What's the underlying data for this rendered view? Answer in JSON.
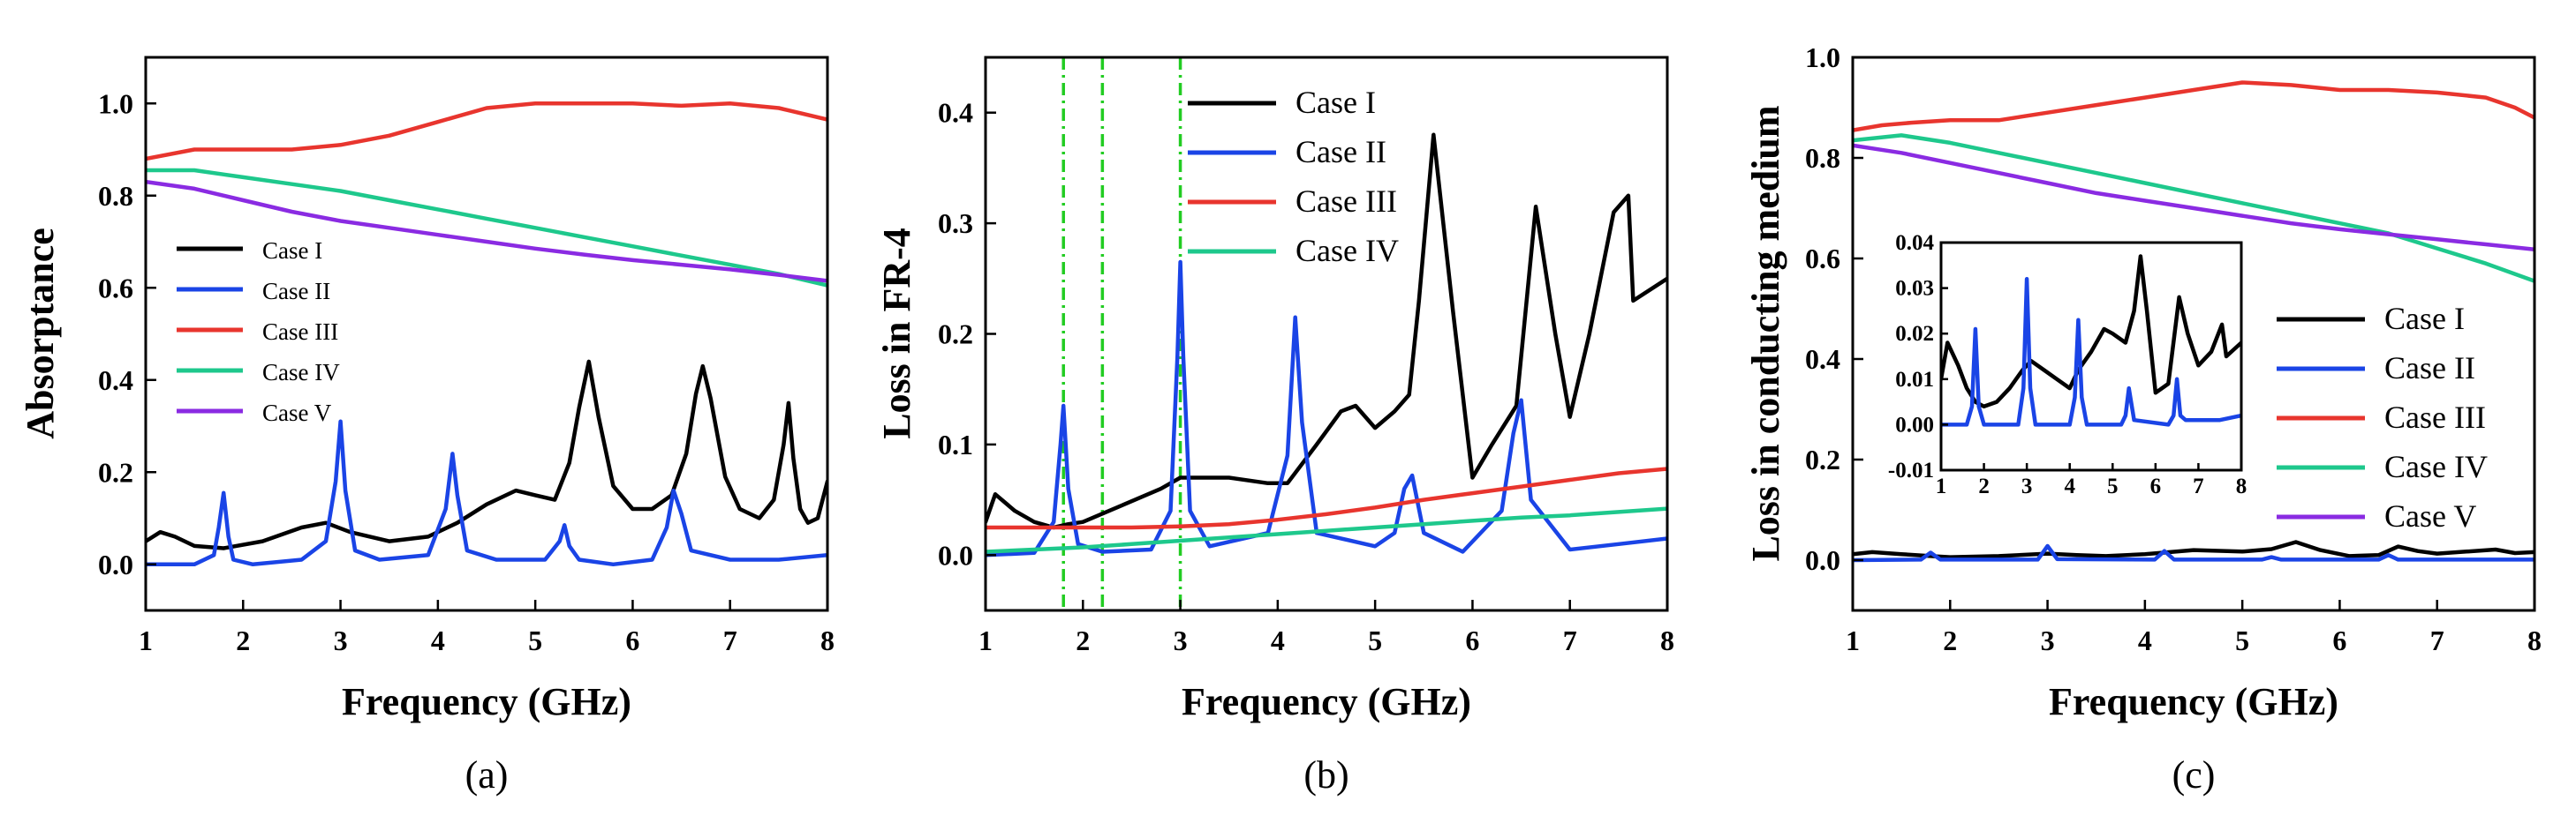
{
  "chart_data": [
    {
      "type": "line",
      "panel_label": "(a)",
      "xlabel": "Frequency (GHz)",
      "ylabel": "Absorptance",
      "xlim": [
        1,
        8
      ],
      "ylim": [
        -0.1,
        1.1
      ],
      "xticks": [
        1,
        2,
        3,
        4,
        5,
        6,
        7,
        8
      ],
      "yticks": [
        0.0,
        0.2,
        0.4,
        0.6,
        0.8,
        1.0
      ],
      "ytick_labels": [
        "0.0",
        "0.2",
        "0.4",
        "0.6",
        "0.8",
        "1.0"
      ],
      "legend_position": "middle-left",
      "series": [
        {
          "name": "Case I",
          "color": "#000000",
          "x": [
            1.0,
            1.15,
            1.3,
            1.5,
            1.8,
            2.2,
            2.6,
            2.85,
            3.1,
            3.5,
            3.9,
            4.2,
            4.5,
            4.8,
            5.0,
            5.2,
            5.35,
            5.45,
            5.55,
            5.65,
            5.8,
            6.0,
            6.2,
            6.4,
            6.55,
            6.65,
            6.72,
            6.8,
            6.95,
            7.1,
            7.3,
            7.45,
            7.55,
            7.6,
            7.65,
            7.72,
            7.8,
            7.9,
            8.0
          ],
          "y": [
            0.05,
            0.07,
            0.06,
            0.04,
            0.035,
            0.05,
            0.08,
            0.09,
            0.07,
            0.05,
            0.06,
            0.09,
            0.13,
            0.16,
            0.15,
            0.14,
            0.22,
            0.34,
            0.44,
            0.32,
            0.17,
            0.12,
            0.12,
            0.15,
            0.24,
            0.37,
            0.43,
            0.36,
            0.19,
            0.12,
            0.1,
            0.14,
            0.26,
            0.35,
            0.23,
            0.12,
            0.09,
            0.1,
            0.18
          ]
        },
        {
          "name": "Case II",
          "color": "#1a44e6",
          "x": [
            1.0,
            1.5,
            1.7,
            1.75,
            1.8,
            1.85,
            1.9,
            2.1,
            2.6,
            2.85,
            2.95,
            3.0,
            3.05,
            3.15,
            3.4,
            3.9,
            4.08,
            4.15,
            4.2,
            4.3,
            4.6,
            5.1,
            5.25,
            5.3,
            5.35,
            5.45,
            5.8,
            6.2,
            6.35,
            6.42,
            6.5,
            6.6,
            7.0,
            7.5,
            8.0
          ],
          "y": [
            0.0,
            0.0,
            0.02,
            0.08,
            0.155,
            0.06,
            0.01,
            0.0,
            0.01,
            0.05,
            0.18,
            0.31,
            0.16,
            0.03,
            0.01,
            0.02,
            0.12,
            0.24,
            0.15,
            0.03,
            0.01,
            0.01,
            0.05,
            0.085,
            0.04,
            0.01,
            0.0,
            0.01,
            0.08,
            0.16,
            0.11,
            0.03,
            0.01,
            0.01,
            0.02
          ]
        },
        {
          "name": "Case III",
          "color": "#e8352e",
          "x": [
            1.0,
            1.5,
            2.0,
            2.5,
            3.0,
            3.5,
            4.0,
            4.5,
            5.0,
            5.5,
            6.0,
            6.5,
            7.0,
            7.5,
            8.0
          ],
          "y": [
            0.88,
            0.9,
            0.9,
            0.9,
            0.91,
            0.93,
            0.96,
            0.99,
            1.0,
            1.0,
            1.0,
            0.995,
            1.0,
            0.99,
            0.965
          ]
        },
        {
          "name": "Case IV",
          "color": "#1ec88c",
          "x": [
            1.0,
            1.5,
            2.0,
            2.5,
            3.0,
            3.5,
            4.0,
            4.5,
            5.0,
            5.5,
            6.0,
            6.5,
            7.0,
            7.5,
            8.0
          ],
          "y": [
            0.855,
            0.855,
            0.84,
            0.825,
            0.81,
            0.79,
            0.77,
            0.75,
            0.73,
            0.71,
            0.69,
            0.67,
            0.65,
            0.63,
            0.605
          ]
        },
        {
          "name": "Case V",
          "color": "#8a2be2",
          "x": [
            1.0,
            1.5,
            2.0,
            2.5,
            3.0,
            3.5,
            4.0,
            4.5,
            5.0,
            5.5,
            6.0,
            6.5,
            7.0,
            7.5,
            8.0
          ],
          "y": [
            0.83,
            0.815,
            0.79,
            0.765,
            0.745,
            0.73,
            0.715,
            0.7,
            0.685,
            0.672,
            0.66,
            0.65,
            0.64,
            0.628,
            0.615
          ]
        }
      ]
    },
    {
      "type": "line",
      "panel_label": "(b)",
      "xlabel": "Frequency (GHz)",
      "ylabel": "Loss in FR-4",
      "xlim": [
        1,
        8
      ],
      "ylim": [
        -0.05,
        0.45
      ],
      "xticks": [
        1,
        2,
        3,
        4,
        5,
        6,
        7,
        8
      ],
      "yticks": [
        0.0,
        0.1,
        0.2,
        0.3,
        0.4
      ],
      "ytick_labels": [
        "0.0",
        "0.1",
        "0.2",
        "0.3",
        "0.4"
      ],
      "vertical_lines": [
        1.8,
        2.2,
        3.0
      ],
      "legend_position": "top-right",
      "series": [
        {
          "name": "Case I",
          "color": "#000000",
          "x": [
            1.0,
            1.1,
            1.3,
            1.5,
            1.7,
            1.85,
            2.0,
            2.4,
            2.8,
            3.0,
            3.5,
            3.9,
            4.1,
            4.4,
            4.65,
            4.8,
            5.0,
            5.2,
            5.35,
            5.45,
            5.6,
            5.8,
            6.0,
            6.2,
            6.45,
            6.65,
            6.85,
            7.0,
            7.2,
            7.45,
            7.6,
            7.65,
            8.0
          ],
          "y": [
            0.03,
            0.055,
            0.04,
            0.03,
            0.025,
            0.028,
            0.03,
            0.045,
            0.06,
            0.07,
            0.07,
            0.065,
            0.065,
            0.1,
            0.13,
            0.135,
            0.115,
            0.13,
            0.145,
            0.23,
            0.38,
            0.22,
            0.07,
            0.1,
            0.135,
            0.315,
            0.2,
            0.125,
            0.2,
            0.31,
            0.325,
            0.23,
            0.25
          ]
        },
        {
          "name": "Case II",
          "color": "#1a44e6",
          "x": [
            1.0,
            1.5,
            1.7,
            1.77,
            1.8,
            1.85,
            1.95,
            2.2,
            2.7,
            2.9,
            2.97,
            3.0,
            3.03,
            3.1,
            3.3,
            3.9,
            4.1,
            4.18,
            4.25,
            4.4,
            5.0,
            5.2,
            5.3,
            5.38,
            5.5,
            5.9,
            6.3,
            6.42,
            6.5,
            6.6,
            7.0,
            7.5,
            8.0
          ],
          "y": [
            0.0,
            0.002,
            0.03,
            0.1,
            0.135,
            0.06,
            0.01,
            0.003,
            0.005,
            0.04,
            0.18,
            0.265,
            0.18,
            0.04,
            0.008,
            0.02,
            0.09,
            0.215,
            0.12,
            0.02,
            0.008,
            0.02,
            0.06,
            0.072,
            0.02,
            0.003,
            0.04,
            0.11,
            0.14,
            0.05,
            0.005,
            0.01,
            0.015
          ]
        },
        {
          "name": "Case III",
          "color": "#e8352e",
          "x": [
            1.0,
            1.5,
            2.0,
            2.5,
            3.0,
            3.5,
            4.0,
            4.5,
            5.0,
            5.5,
            6.0,
            6.5,
            7.0,
            7.5,
            8.0
          ],
          "y": [
            0.025,
            0.025,
            0.025,
            0.025,
            0.026,
            0.028,
            0.032,
            0.037,
            0.043,
            0.05,
            0.056,
            0.062,
            0.068,
            0.074,
            0.078
          ]
        },
        {
          "name": "Case IV",
          "color": "#1ec88c",
          "x": [
            1.0,
            1.5,
            2.0,
            2.5,
            3.0,
            3.5,
            4.0,
            4.5,
            5.0,
            5.5,
            6.0,
            6.5,
            7.0,
            7.5,
            8.0
          ],
          "y": [
            0.003,
            0.005,
            0.007,
            0.01,
            0.013,
            0.016,
            0.019,
            0.022,
            0.025,
            0.028,
            0.031,
            0.034,
            0.036,
            0.039,
            0.042
          ]
        }
      ]
    },
    {
      "type": "line",
      "panel_label": "(c)",
      "xlabel": "Frequency (GHz)",
      "ylabel": "Loss in conducting medium",
      "xlim": [
        1,
        8
      ],
      "ylim": [
        -0.1,
        1.0
      ],
      "xticks": [
        1,
        2,
        3,
        4,
        5,
        6,
        7,
        8
      ],
      "yticks": [
        0.0,
        0.2,
        0.4,
        0.6,
        0.8,
        1.0
      ],
      "ytick_labels": [
        "0.0",
        "0.2",
        "0.4",
        "0.6",
        "0.8",
        "1.0"
      ],
      "legend_position": "middle-right",
      "series": [
        {
          "name": "Case I",
          "color": "#000000",
          "x": [
            1.0,
            1.2,
            1.5,
            1.8,
            2.0,
            2.5,
            3.0,
            3.3,
            3.6,
            4.0,
            4.5,
            5.0,
            5.3,
            5.55,
            5.8,
            6.1,
            6.4,
            6.6,
            6.8,
            7.0,
            7.3,
            7.6,
            7.8,
            8.0
          ],
          "y": [
            0.012,
            0.016,
            0.012,
            0.008,
            0.006,
            0.008,
            0.013,
            0.01,
            0.008,
            0.012,
            0.02,
            0.017,
            0.022,
            0.036,
            0.02,
            0.008,
            0.01,
            0.027,
            0.018,
            0.013,
            0.017,
            0.021,
            0.014,
            0.016
          ]
        },
        {
          "name": "Case II",
          "color": "#1a44e6",
          "x": [
            1.0,
            1.7,
            1.8,
            1.9,
            2.9,
            3.0,
            3.1,
            4.1,
            4.2,
            4.3,
            5.2,
            5.3,
            5.4,
            6.4,
            6.5,
            6.6,
            8.0
          ],
          "y": [
            0.0,
            0.001,
            0.015,
            0.001,
            0.001,
            0.028,
            0.002,
            0.001,
            0.018,
            0.001,
            0.001,
            0.006,
            0.001,
            0.001,
            0.01,
            0.001,
            0.001
          ]
        },
        {
          "name": "Case III",
          "color": "#e8352e",
          "x": [
            1.0,
            1.3,
            1.6,
            2.0,
            2.5,
            3.0,
            3.5,
            4.0,
            4.5,
            5.0,
            5.5,
            6.0,
            6.5,
            7.0,
            7.5,
            7.8,
            8.0
          ],
          "y": [
            0.855,
            0.865,
            0.87,
            0.875,
            0.875,
            0.89,
            0.905,
            0.92,
            0.935,
            0.95,
            0.945,
            0.935,
            0.935,
            0.93,
            0.92,
            0.9,
            0.88
          ]
        },
        {
          "name": "Case IV",
          "color": "#1ec88c",
          "x": [
            1.0,
            1.5,
            2.0,
            2.5,
            3.0,
            3.5,
            4.0,
            4.5,
            5.0,
            5.5,
            6.0,
            6.5,
            7.0,
            7.5,
            8.0
          ],
          "y": [
            0.835,
            0.845,
            0.83,
            0.81,
            0.79,
            0.77,
            0.75,
            0.73,
            0.71,
            0.69,
            0.67,
            0.65,
            0.62,
            0.59,
            0.555
          ]
        },
        {
          "name": "Case V",
          "color": "#8a2be2",
          "x": [
            1.0,
            1.5,
            2.0,
            2.5,
            3.0,
            3.5,
            4.0,
            4.5,
            5.0,
            5.5,
            6.0,
            6.5,
            7.0,
            7.5,
            8.0
          ],
          "y": [
            0.825,
            0.81,
            0.79,
            0.77,
            0.75,
            0.73,
            0.715,
            0.7,
            0.685,
            0.67,
            0.658,
            0.648,
            0.638,
            0.628,
            0.618
          ]
        }
      ],
      "inset": {
        "xlim": [
          1,
          8
        ],
        "ylim": [
          -0.01,
          0.04
        ],
        "xticks": [
          1,
          2,
          3,
          4,
          5,
          6,
          7,
          8
        ],
        "yticks": [
          -0.01,
          0.0,
          0.01,
          0.02,
          0.03,
          0.04
        ],
        "ytick_labels": [
          "-0.01",
          "0.00",
          "0.01",
          "0.02",
          "0.03",
          "0.04"
        ],
        "series": [
          {
            "name": "Case I",
            "color": "#000000",
            "x": [
              1.0,
              1.15,
              1.4,
              1.6,
              1.8,
              2.0,
              2.3,
              2.6,
              2.9,
              3.1,
              3.4,
              3.7,
              4.0,
              4.2,
              4.5,
              4.8,
              5.0,
              5.3,
              5.5,
              5.65,
              5.8,
              6.0,
              6.3,
              6.55,
              6.75,
              7.0,
              7.3,
              7.55,
              7.65,
              8.0
            ],
            "y": [
              0.01,
              0.018,
              0.013,
              0.008,
              0.005,
              0.004,
              0.005,
              0.008,
              0.012,
              0.014,
              0.012,
              0.01,
              0.008,
              0.012,
              0.016,
              0.021,
              0.02,
              0.018,
              0.025,
              0.037,
              0.025,
              0.007,
              0.009,
              0.028,
              0.02,
              0.013,
              0.016,
              0.022,
              0.015,
              0.018
            ]
          },
          {
            "name": "Case II",
            "color": "#1a44e6",
            "x": [
              1.0,
              1.6,
              1.72,
              1.8,
              1.88,
              2.0,
              2.8,
              2.92,
              3.0,
              3.08,
              3.2,
              4.0,
              4.12,
              4.2,
              4.28,
              4.4,
              5.2,
              5.3,
              5.38,
              5.5,
              6.3,
              6.42,
              6.5,
              6.58,
              6.7,
              7.5,
              8.0
            ],
            "y": [
              0.0,
              0.0,
              0.004,
              0.021,
              0.004,
              0.0,
              0.0,
              0.008,
              0.032,
              0.008,
              0.0,
              0.0,
              0.006,
              0.023,
              0.006,
              0.0,
              0.0,
              0.002,
              0.008,
              0.001,
              0.0,
              0.002,
              0.01,
              0.002,
              0.001,
              0.001,
              0.002
            ]
          }
        ]
      }
    }
  ]
}
